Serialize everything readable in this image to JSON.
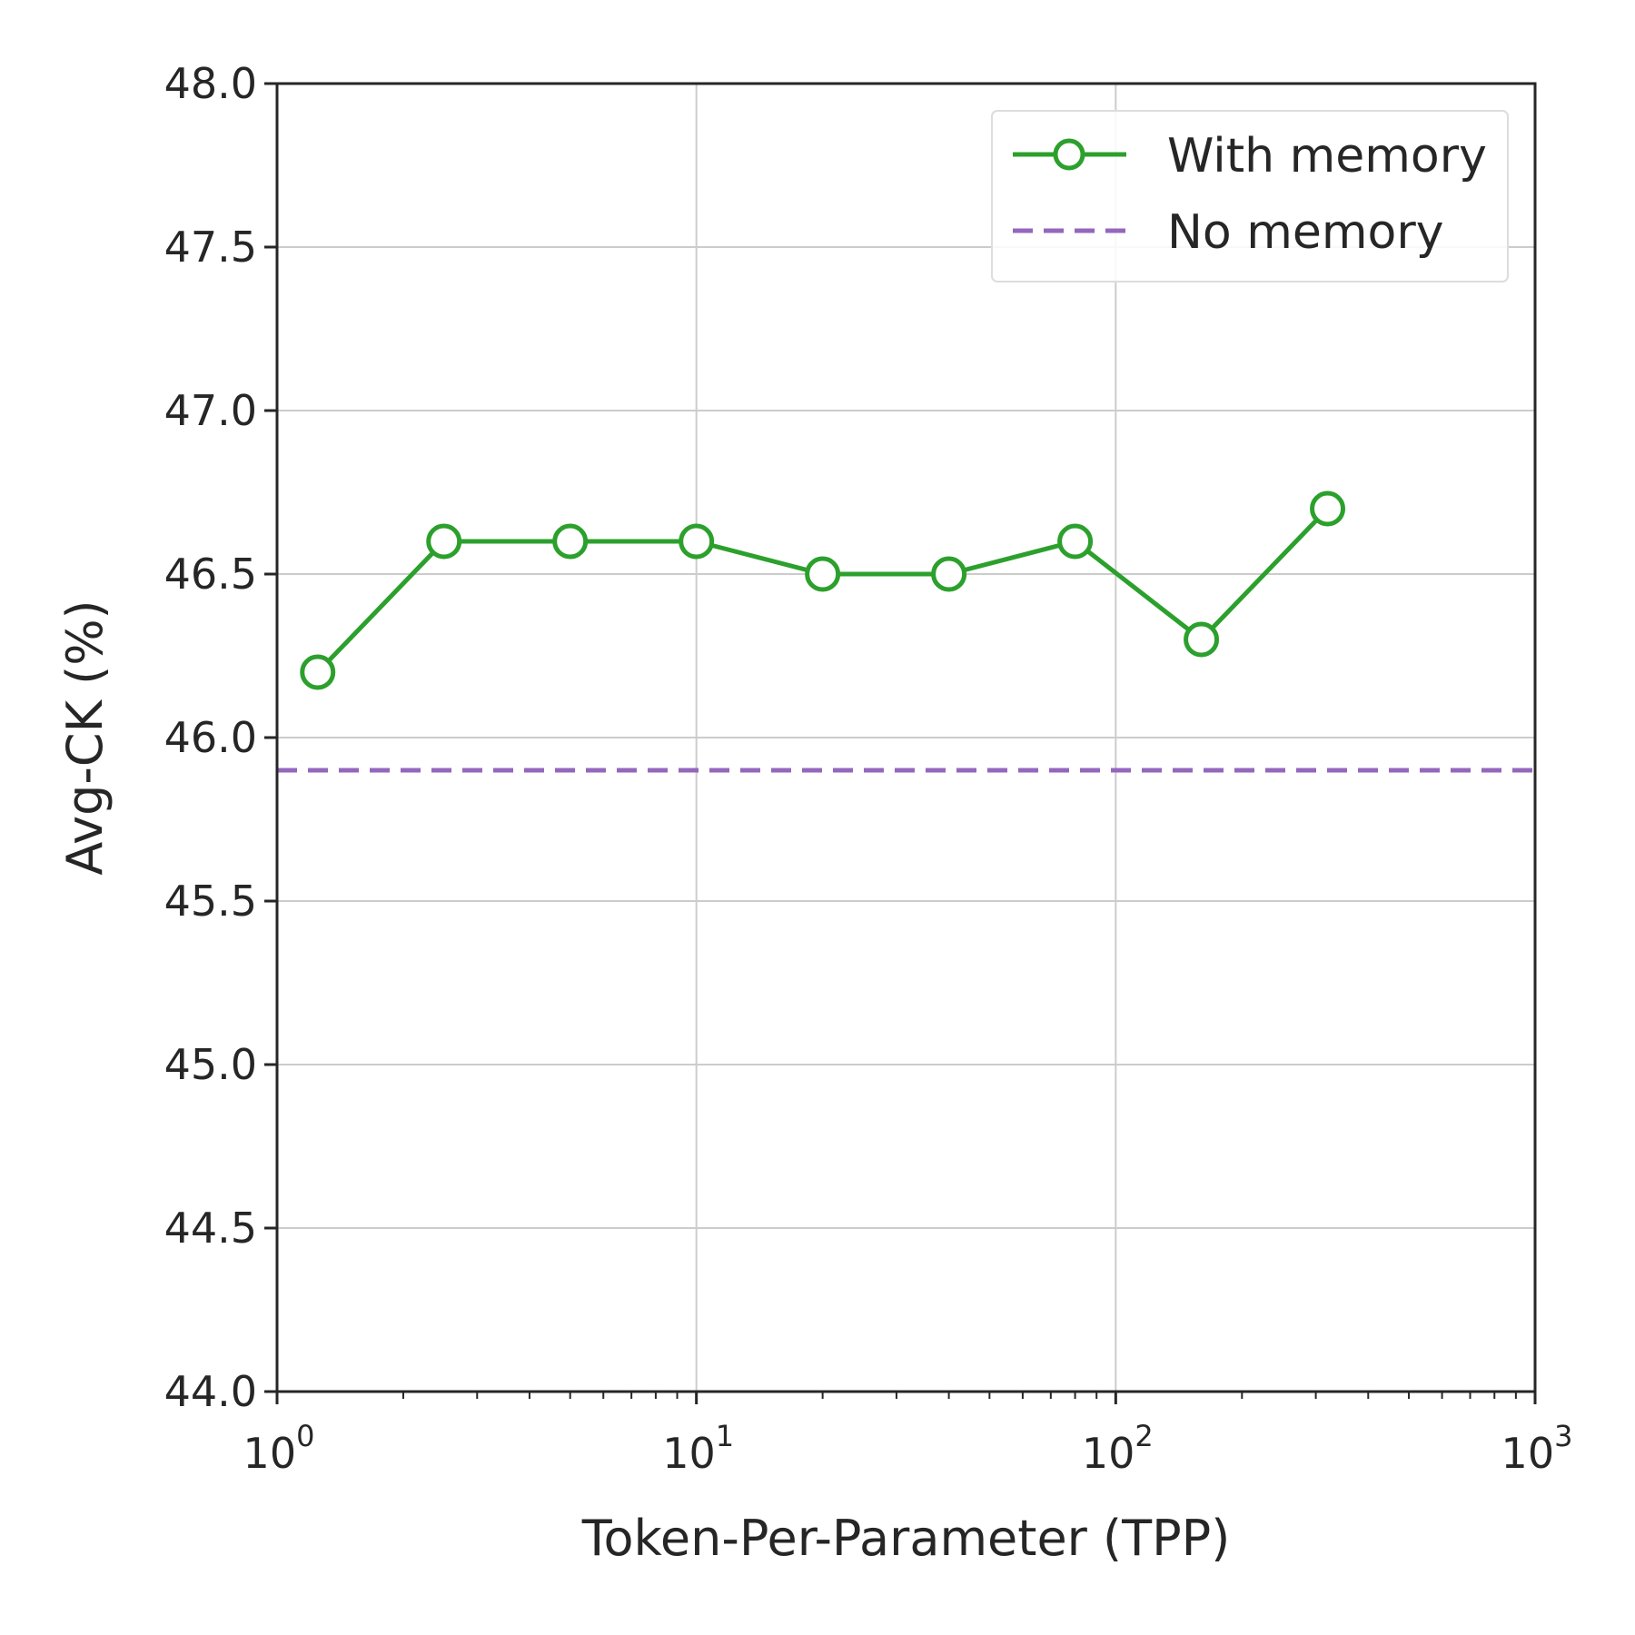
{
  "chart_data": {
    "type": "line",
    "xlabel": "Token-Per-Parameter (TPP)",
    "ylabel": "Avg-CK (%)",
    "xscale": "log",
    "xlim": [
      1,
      1000
    ],
    "ylim": [
      44.0,
      48.0
    ],
    "grid": true,
    "legend_position": "top-right",
    "x_ticks": [
      {
        "base": "10",
        "exp": "0",
        "value": 1
      },
      {
        "base": "10",
        "exp": "1",
        "value": 10
      },
      {
        "base": "10",
        "exp": "2",
        "value": 100
      },
      {
        "base": "10",
        "exp": "3",
        "value": 1000
      }
    ],
    "y_ticks": [
      "44.0",
      "44.5",
      "45.0",
      "45.5",
      "46.0",
      "46.5",
      "47.0",
      "47.5",
      "48.0"
    ],
    "series": [
      {
        "name": "With memory",
        "style": "solid-circle-markers",
        "color": "#2ca02c",
        "x": [
          1.25,
          2.5,
          5,
          10,
          20,
          40,
          80,
          160,
          320
        ],
        "y": [
          46.2,
          46.6,
          46.6,
          46.6,
          46.5,
          46.5,
          46.6,
          46.3,
          46.7
        ]
      },
      {
        "name": "No memory",
        "style": "dashed-horizontal",
        "color": "#9467bd",
        "y": 45.9
      }
    ]
  }
}
